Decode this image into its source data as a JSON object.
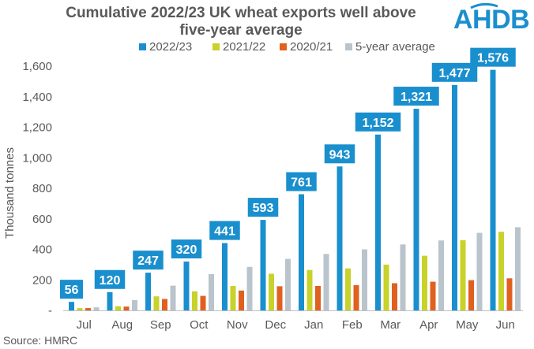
{
  "header": {
    "title_line1": "Cumulative 2022/23 UK wheat exports well above",
    "title_line2": "five-year average",
    "logo_text": "AHDB"
  },
  "footer": {
    "source": "Source: HMRC"
  },
  "colors": {
    "series": [
      "#1a8fce",
      "#c8d22a",
      "#e0601f",
      "#b9c4cc"
    ],
    "label_bg": "#1a8fce",
    "axis_text": "#595959"
  },
  "chart_data": {
    "type": "bar",
    "title": "Cumulative 2022/23 UK wheat exports well above five-year average",
    "ylabel": "Thousand tonnes",
    "xlabel": "",
    "ylim": [
      0,
      1600
    ],
    "yticks": [
      0,
      200,
      400,
      600,
      800,
      1000,
      1200,
      1400,
      1600
    ],
    "ytick_labels": [
      "-",
      "200",
      "400",
      "600",
      "800",
      "1,000",
      "1,200",
      "1,400",
      "1,600"
    ],
    "categories": [
      "Jul",
      "Aug",
      "Sep",
      "Oct",
      "Nov",
      "Dec",
      "Jan",
      "Feb",
      "Mar",
      "Apr",
      "May",
      "Jun"
    ],
    "legend_position": "top",
    "grid": false,
    "series": [
      {
        "name": "2022/23",
        "values": [
          56,
          120,
          247,
          320,
          441,
          593,
          761,
          943,
          1152,
          1321,
          1477,
          1576
        ],
        "labels": [
          "56",
          "120",
          "247",
          "320",
          "441",
          "593",
          "761",
          "943",
          "1,152",
          "1,321",
          "1,477",
          "1,576"
        ]
      },
      {
        "name": "2021/22",
        "values": [
          15,
          28,
          92,
          125,
          160,
          240,
          265,
          275,
          300,
          358,
          460,
          515
        ]
      },
      {
        "name": "2020/21",
        "values": [
          15,
          25,
          75,
          95,
          130,
          158,
          160,
          165,
          178,
          188,
          198,
          210
        ]
      },
      {
        "name": "5-year average",
        "values": [
          20,
          68,
          162,
          238,
          285,
          337,
          370,
          400,
          432,
          458,
          508,
          545
        ]
      }
    ]
  }
}
